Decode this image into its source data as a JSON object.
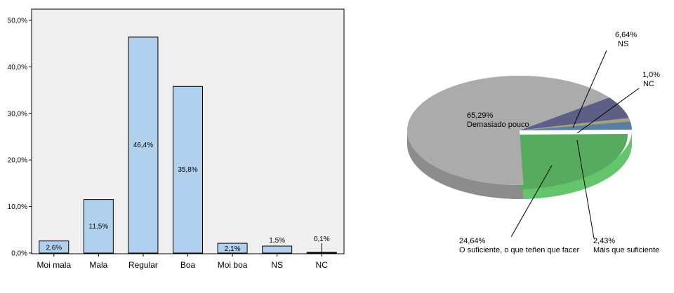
{
  "chart_data": [
    {
      "type": "bar",
      "categories": [
        "Moi mala",
        "Mala",
        "Regular",
        "Boa",
        "Moi boa",
        "NS",
        "NC"
      ],
      "values": [
        2.6,
        11.5,
        46.4,
        35.8,
        2.1,
        1.5,
        0.1
      ],
      "value_labels": [
        "2,6%",
        "11,5%",
        "46,4%",
        "35,8%",
        "2,1%",
        "1,5%",
        "0,1%"
      ],
      "yticks": [
        0,
        10,
        20,
        30,
        40,
        50
      ],
      "ytick_labels": [
        "0,0%",
        "10,0%",
        "20,0%",
        "30,0%",
        "40,0%",
        "50,0%"
      ],
      "ylim": [
        0,
        52
      ],
      "grid": false,
      "colors": {
        "bar": "#b0d0ee",
        "background": "#efefef",
        "outline": "#000000"
      }
    },
    {
      "type": "pie",
      "slices": [
        {
          "percent_label": "65,29%",
          "label": "Demasiado pouco",
          "value": 65.29,
          "color": "#ababab"
        },
        {
          "percent_label": "6,64%",
          "label": "NS",
          "value": 6.64,
          "color": "#5d5f86"
        },
        {
          "percent_label": "1,0%",
          "label": "NC",
          "value": 1.0,
          "color": "#a8a27c"
        },
        {
          "percent_label": "2,43%",
          "label": "Máis que suficiente",
          "value": 2.43,
          "color": "#5a7fa3"
        },
        {
          "percent_label": "24,64%",
          "label": "O suficiente, o que teñen que facer",
          "value": 24.64,
          "color": "#57ab5e"
        }
      ],
      "three_d": true
    }
  ]
}
